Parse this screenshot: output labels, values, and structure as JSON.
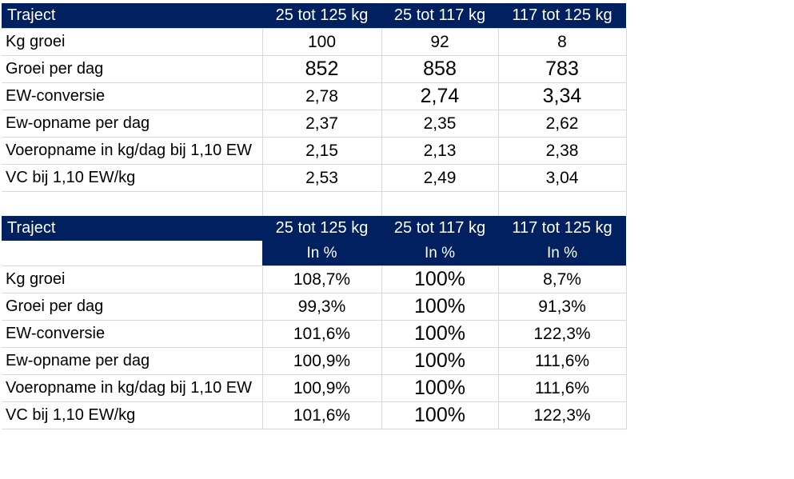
{
  "colors": {
    "header_bg": "#002060",
    "header_text": "#FFFFFF",
    "gridline": "#D9D9D9",
    "text": "#000000",
    "background": "#FFFFFF"
  },
  "table1": {
    "header": [
      "Traject",
      "25 tot 125 kg",
      "25 tot 117 kg",
      "117 tot 125 kg"
    ],
    "rows": [
      {
        "label": "Kg groei",
        "values": [
          "100",
          "92",
          "8"
        ]
      },
      {
        "label": "Groei per dag",
        "values": [
          "852",
          "858",
          "783"
        ]
      },
      {
        "label": "EW-conversie",
        "values": [
          "2,78",
          "2,74",
          "3,34"
        ]
      },
      {
        "label": "Ew-opname per dag",
        "values": [
          "2,37",
          "2,35",
          "2,62"
        ]
      },
      {
        "label": "Voeropname in kg/dag bij 1,10 EW",
        "values": [
          "2,15",
          "2,13",
          "2,38"
        ]
      },
      {
        "label": "VC bij 1,10 EW/kg",
        "values": [
          "2,53",
          "2,49",
          "3,04"
        ]
      }
    ]
  },
  "table2": {
    "header": [
      "Traject",
      "25 tot 125 kg",
      "25 tot 117 kg",
      "117 tot 125 kg"
    ],
    "subheader": [
      "",
      "In %",
      "In %",
      "In %"
    ],
    "rows": [
      {
        "label": "Kg groei",
        "values": [
          "108,7%",
          "100%",
          "8,7%"
        ]
      },
      {
        "label": "Groei per dag",
        "values": [
          "99,3%",
          "100%",
          "91,3%"
        ]
      },
      {
        "label": "EW-conversie",
        "values": [
          "101,6%",
          "100%",
          "122,3%"
        ]
      },
      {
        "label": "Ew-opname per dag",
        "values": [
          "100,9%",
          "100%",
          "111,6%"
        ]
      },
      {
        "label": "Voeropname in kg/dag bij 1,10 EW",
        "values": [
          "100,9%",
          "100%",
          "111,6%"
        ]
      },
      {
        "label": "VC bij 1,10 EW/kg",
        "values": [
          "101,6%",
          "100%",
          "122,3%"
        ]
      }
    ]
  }
}
